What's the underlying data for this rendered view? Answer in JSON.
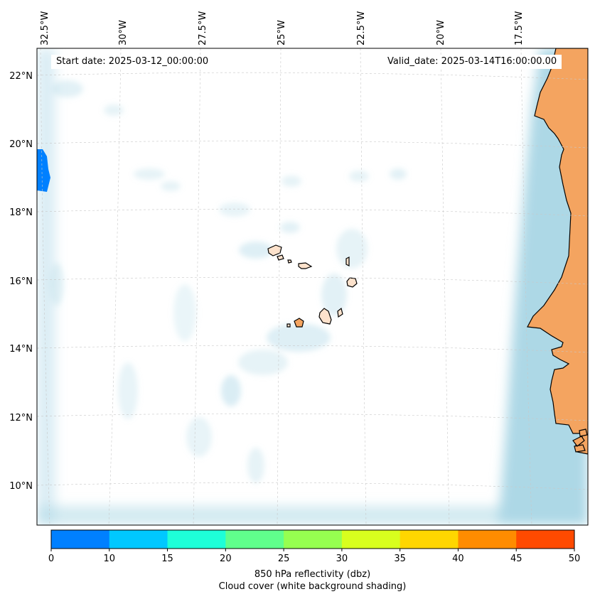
{
  "map": {
    "start_date": "Start date: 2025-03-12_00:00:00",
    "valid_date": "Valid_date: 2025-03-14T16:00:00.00",
    "lon_labels": [
      "32.5°W",
      "30°W",
      "27.5°W",
      "25°W",
      "22.5°W",
      "20°W",
      "17.5°W"
    ],
    "lat_labels": [
      "22°N",
      "20°N",
      "18°N",
      "16°N",
      "14°N",
      "12°N",
      "10°N"
    ],
    "colors": {
      "land": "#f4a460",
      "island_fill": "#fde2cc",
      "cloud": "#add8e6",
      "reflectivity_echo": "#0080ff",
      "coastline": "#000000",
      "gridline": "#c8c8c8"
    }
  },
  "colorbar": {
    "ticks": [
      "0",
      "10",
      "15",
      "20",
      "25",
      "30",
      "35",
      "40",
      "45",
      "50"
    ],
    "colors": [
      "#0080ff",
      "#00c8ff",
      "#1effd8",
      "#60ff8c",
      "#96ff50",
      "#d8ff1e",
      "#ffd600",
      "#ff8c00",
      "#ff4a00"
    ],
    "label_line1": "850 hPa reflectivity (dbz)",
    "label_line2": "Cloud cover (white background shading)"
  }
}
